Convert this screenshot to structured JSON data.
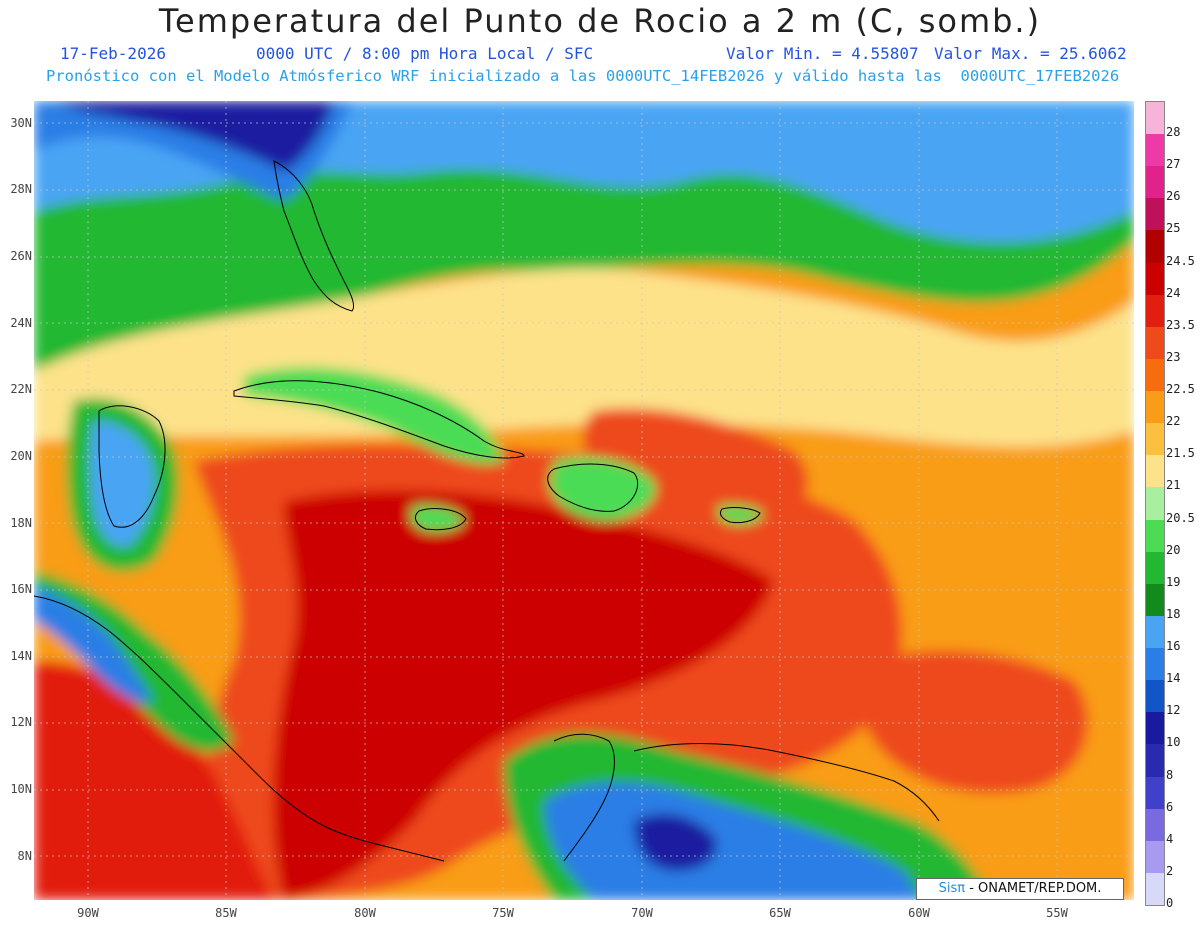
{
  "title": "Temperatura del Punto de Rocio a 2 m (C, somb.)",
  "date": "17-Feb-2026",
  "time_info": "0000 UTC / 8:00 pm Hora Local / SFC",
  "min_value": "Valor Min. = 4.55807",
  "max_value": "Valor Max. = 25.6062",
  "subtitle": "Pronóstico con el Modelo Atmósferico WRF inicializado a las 0000UTC_14FEB2026 y válido hasta las  0000UTC_17FEB2026",
  "lat_ticks": [
    "30N",
    "28N",
    "26N",
    "24N",
    "22N",
    "20N",
    "18N",
    "16N",
    "14N",
    "12N",
    "10N",
    "8N"
  ],
  "lon_ticks": [
    "90W",
    "85W",
    "80W",
    "75W",
    "70W",
    "65W",
    "60W",
    "55W"
  ],
  "legend": {
    "levels": [
      "28",
      "27",
      "26",
      "25",
      "24.5",
      "24",
      "23.5",
      "23",
      "22.5",
      "22",
      "21.5",
      "21",
      "20.5",
      "20",
      "19",
      "18",
      "16",
      "14",
      "12",
      "10",
      "8",
      "6",
      "4",
      "2",
      "0"
    ],
    "colors": [
      "#f6b4d8",
      "#ee3aa6",
      "#e0228a",
      "#c0105a",
      "#b00000",
      "#cc0000",
      "#e21e10",
      "#ee4a1a",
      "#f86c10",
      "#f99c18",
      "#fbc040",
      "#fde28a",
      "#a8f0a0",
      "#4cdc54",
      "#22b832",
      "#128a1c",
      "#4aa4f4",
      "#2a7ee6",
      "#1255c8",
      "#1a1aa0",
      "#2a2ab0",
      "#4040c8",
      "#7a6ae0",
      "#a89af0",
      "#d8d8f8"
    ],
    "bottom_label": "0"
  },
  "credit": {
    "brand": "Sisπ",
    "text": " - ONAMET/REP.DOM."
  }
}
